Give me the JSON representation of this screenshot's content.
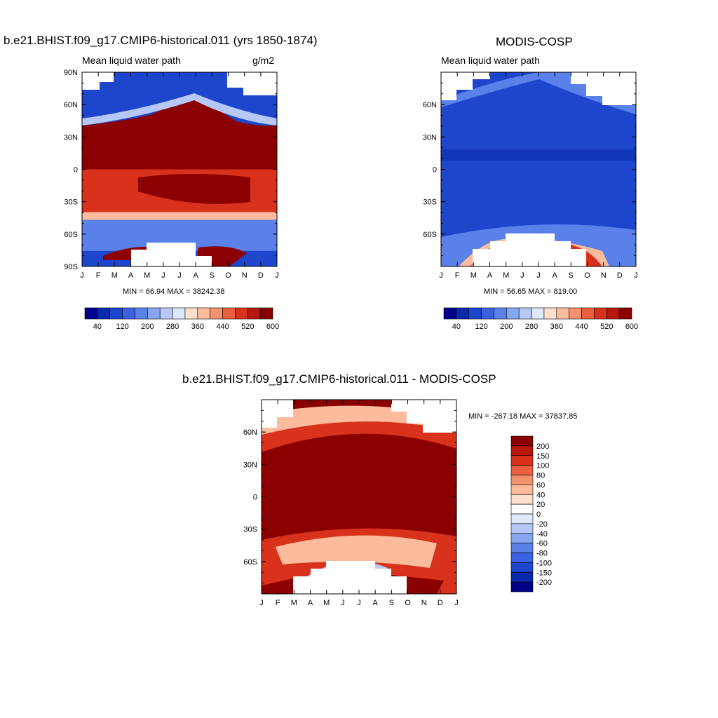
{
  "panels": [
    {
      "title": "b.e21.BHIST.f09_g17.CMIP6-historical.011 (yrs 1850-1874)",
      "subtitle_left": "Mean liquid water path",
      "subtitle_right": "g/m2",
      "stats": "MIN =  66.94 MAX = 38242.38"
    },
    {
      "title": "MODIS-COSP",
      "subtitle_left": "Mean liquid water path",
      "subtitle_right": "",
      "stats": "MIN =  56.65 MAX = 819.00"
    },
    {
      "title": "b.e21.BHIST.f09_g17.CMIP6-historical.011 - MODIS-COSP",
      "subtitle_left": "",
      "subtitle_right": "",
      "stats": "MIN = -267.18 MAX = 37837.85"
    }
  ],
  "chart_data": [
    {
      "type": "heatmap",
      "title": "b.e21.BHIST.f09_g17.CMIP6-historical.011 (yrs 1850-1874)",
      "variable": "Mean liquid water path",
      "units": "g/m2",
      "x_ticks": [
        "J",
        "F",
        "M",
        "A",
        "M",
        "J",
        "J",
        "A",
        "S",
        "O",
        "N",
        "D",
        "J"
      ],
      "y_ticks": [
        "90N",
        "60N",
        "30N",
        "0",
        "30S",
        "60S",
        "90S"
      ],
      "colorbar_labels": [
        "40",
        "120",
        "200",
        "280",
        "360",
        "440",
        "520",
        "600"
      ],
      "colorbar_colors": [
        "#00008b",
        "#0a2aad",
        "#1e46cc",
        "#3a62e0",
        "#5a80ea",
        "#86a6f2",
        "#b6c8f7",
        "#dde8fb",
        "#fde0cc",
        "#fbbb9c",
        "#f4916e",
        "#ea5f3d",
        "#d8321c",
        "#b8170d",
        "#8b0000"
      ],
      "description_bands": [
        {
          "lat": "40N-60N (peaks ~65N Jul)",
          "level": ">600"
        },
        {
          "lat": "5N-30N",
          "level": ">600"
        },
        {
          "lat": "0-25S",
          "level": "360-600"
        },
        {
          "lat": "35S-65S",
          "level": "120-280"
        },
        {
          "lat": "75S-85S (austral summer)",
          "level": ">600"
        }
      ],
      "min": 66.94,
      "max": 38242.38
    },
    {
      "type": "heatmap",
      "title": "MODIS-COSP",
      "variable": "Mean liquid water path",
      "x_ticks": [
        "J",
        "F",
        "M",
        "A",
        "M",
        "J",
        "J",
        "A",
        "S",
        "O",
        "N",
        "D",
        "J"
      ],
      "y_ticks": [
        "60N",
        "30N",
        "0",
        "30S",
        "60S"
      ],
      "colorbar_labels": [
        "40",
        "120",
        "200",
        "280",
        "360",
        "440",
        "520",
        "600"
      ],
      "colorbar_colors": [
        "#00008b",
        "#0a2aad",
        "#1e46cc",
        "#3a62e0",
        "#5a80ea",
        "#86a6f2",
        "#b6c8f7",
        "#dde8fb",
        "#fde0cc",
        "#fbbb9c",
        "#f4916e",
        "#ea5f3d",
        "#d8321c",
        "#b8170d",
        "#8b0000"
      ],
      "min": 56.65,
      "max": 819.0
    },
    {
      "type": "heatmap",
      "title": "b.e21.BHIST.f09_g17.CMIP6-historical.011 - MODIS-COSP",
      "x_ticks": [
        "J",
        "F",
        "M",
        "A",
        "M",
        "J",
        "J",
        "A",
        "S",
        "O",
        "N",
        "D",
        "J"
      ],
      "y_ticks": [
        "60N",
        "30N",
        "0",
        "30S",
        "60S"
      ],
      "colorbar_labels": [
        "200",
        "150",
        "100",
        "80",
        "60",
        "40",
        "20",
        "0",
        "-20",
        "-40",
        "-60",
        "-80",
        "-100",
        "-150",
        "-200"
      ],
      "colorbar_colors": [
        "#8b0000",
        "#b8170d",
        "#d8321c",
        "#ea5f3d",
        "#f4916e",
        "#fbbb9c",
        "#fde0cc",
        "#ffffff",
        "#dde8fb",
        "#b6c8f7",
        "#86a6f2",
        "#5a80ea",
        "#3a62e0",
        "#1e46cc",
        "#0a2aad",
        "#00008b"
      ],
      "min": -267.18,
      "max": 37837.85
    }
  ],
  "colors": {
    "dark_red": "#8b0000",
    "mid_red": "#d8321c",
    "light_red": "#fbbb9c",
    "blue": "#1e46cc",
    "light_blue": "#5a80ea",
    "pale_blue": "#b6c8f7"
  }
}
